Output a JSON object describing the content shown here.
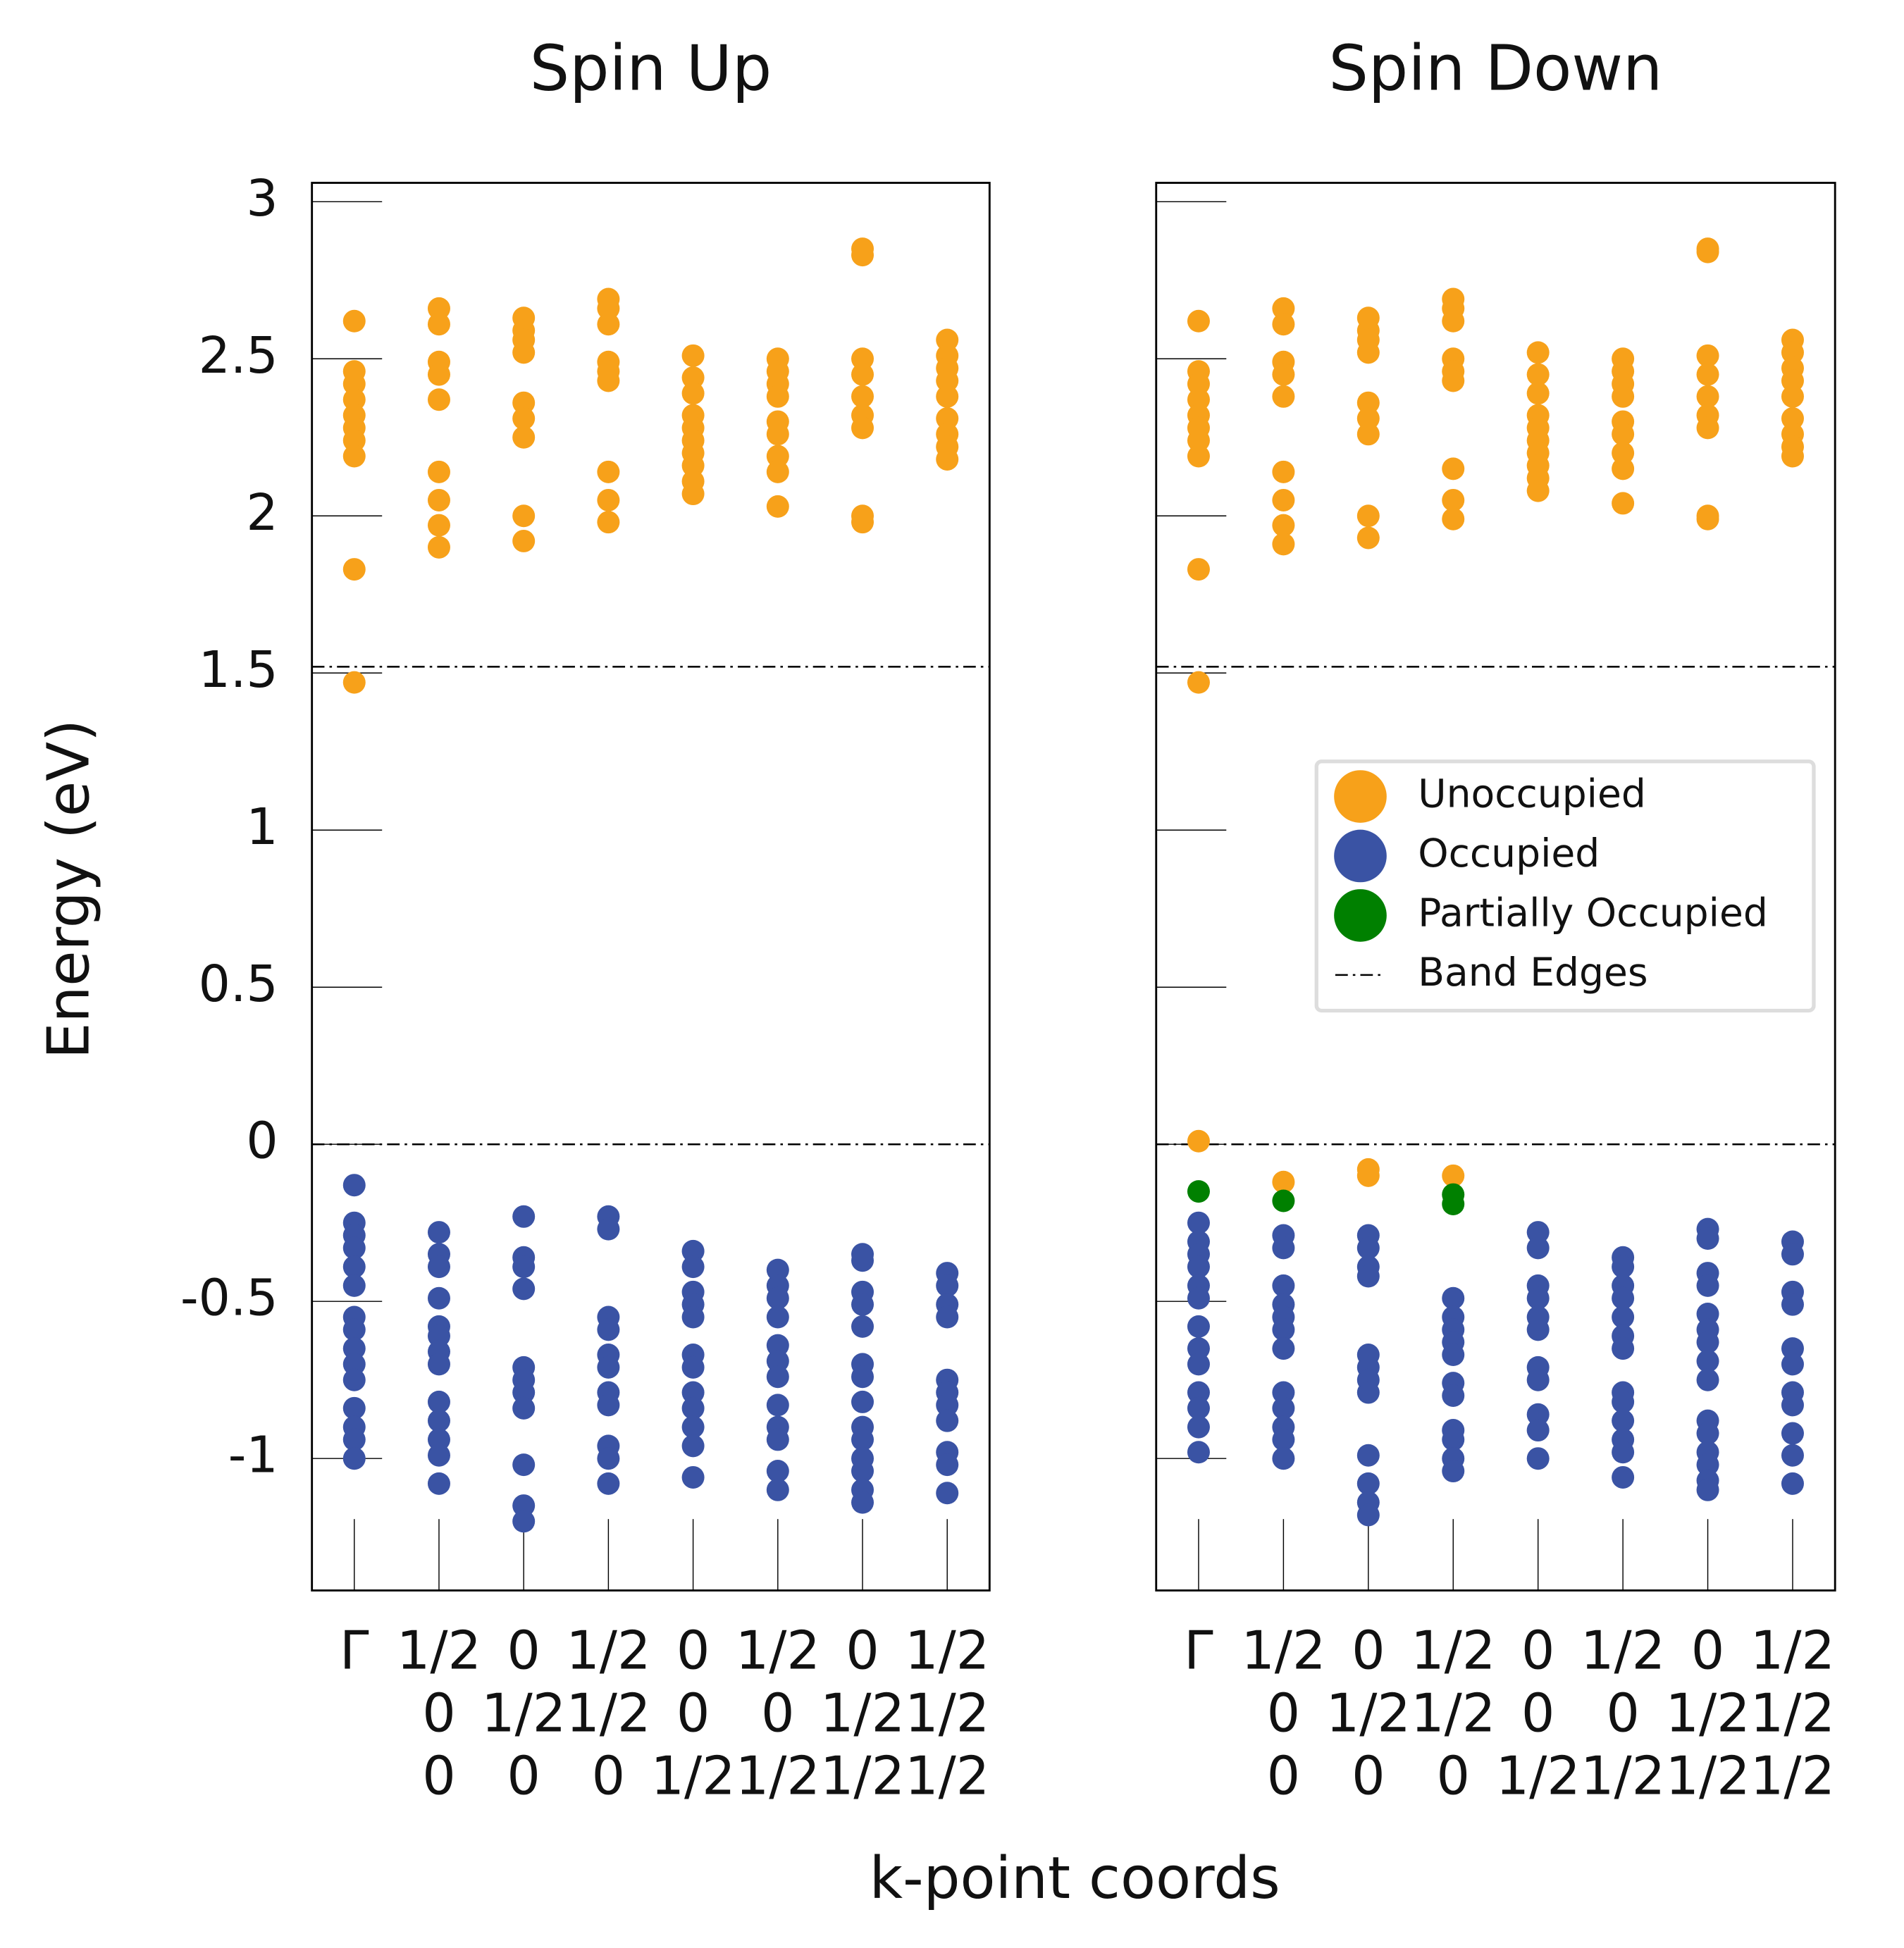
{
  "figure": {
    "xlabel": "k-point coords",
    "ylabel": "Energy (eV)"
  },
  "chart_data": [
    {
      "type": "scatter",
      "title": "Spin Up",
      "categories": [
        [
          "Γ"
        ],
        [
          "1/2",
          "0",
          "0"
        ],
        [
          "0",
          "1/2",
          "0"
        ],
        [
          "1/2",
          "1/2",
          "0"
        ],
        [
          "0",
          "0",
          "1/2"
        ],
        [
          "1/2",
          "0",
          "1/2"
        ],
        [
          "0",
          "1/2",
          "1/2"
        ],
        [
          "1/2",
          "1/2",
          "1/2"
        ]
      ],
      "ylim": [
        -1.42,
        3.06
      ],
      "yticks": [
        -1,
        -0.5,
        0,
        0.5,
        1,
        1.5,
        2,
        2.5,
        3
      ],
      "show_ytick_labels": true,
      "band_edges": {
        "name": "Band Edges",
        "values": [
          0,
          1.52
        ]
      },
      "series": [
        {
          "name": "Unoccupied",
          "color": "#f7a11a",
          "values": [
            [
              2.62,
              2.46,
              2.42,
              2.37,
              2.32,
              2.28,
              2.24,
              2.19,
              1.83,
              1.47
            ],
            [
              2.66,
              2.61,
              2.49,
              2.45,
              2.37,
              2.14,
              2.05,
              1.97,
              1.9
            ],
            [
              2.63,
              2.59,
              2.56,
              2.52,
              2.36,
              2.31,
              2.25,
              2.0,
              1.92
            ],
            [
              2.69,
              2.66,
              2.61,
              2.49,
              2.46,
              2.43,
              2.14,
              2.05,
              1.98
            ],
            [
              2.51,
              2.44,
              2.39,
              2.32,
              2.28,
              2.24,
              2.2,
              2.16,
              2.11,
              2.07
            ],
            [
              2.5,
              2.46,
              2.42,
              2.38,
              2.3,
              2.26,
              2.19,
              2.14,
              2.03
            ],
            [
              2.85,
              2.83,
              2.5,
              2.45,
              2.38,
              2.32,
              2.28,
              2.0,
              1.98
            ],
            [
              2.56,
              2.51,
              2.47,
              2.43,
              2.38,
              2.31,
              2.26,
              2.22,
              2.18
            ]
          ]
        },
        {
          "name": "Occupied",
          "color": "#3a53a4",
          "values": [
            [
              -0.13,
              -0.25,
              -0.29,
              -0.33,
              -0.39,
              -0.45,
              -0.55,
              -0.59,
              -0.65,
              -0.7,
              -0.75,
              -0.84,
              -0.9,
              -0.94,
              -1.0
            ],
            [
              -0.28,
              -0.35,
              -0.39,
              -0.49,
              -0.58,
              -0.61,
              -0.66,
              -0.7,
              -0.82,
              -0.88,
              -0.94,
              -0.99,
              -1.08
            ],
            [
              -0.23,
              -0.36,
              -0.39,
              -0.46,
              -0.71,
              -0.75,
              -0.79,
              -0.84,
              -1.02,
              -1.15,
              -1.2
            ],
            [
              -0.23,
              -0.27,
              -0.55,
              -0.59,
              -0.67,
              -0.71,
              -0.79,
              -0.83,
              -0.96,
              -1.0,
              -1.08
            ],
            [
              -0.34,
              -0.39,
              -0.47,
              -0.51,
              -0.55,
              -0.67,
              -0.71,
              -0.79,
              -0.84,
              -0.9,
              -0.96,
              -1.06
            ],
            [
              -0.4,
              -0.45,
              -0.49,
              -0.55,
              -0.64,
              -0.69,
              -0.74,
              -0.83,
              -0.9,
              -0.94,
              -1.04,
              -1.1
            ],
            [
              -0.35,
              -0.37,
              -0.47,
              -0.51,
              -0.58,
              -0.7,
              -0.74,
              -0.82,
              -0.9,
              -0.94,
              -1.0,
              -1.04,
              -1.1,
              -1.14
            ],
            [
              -0.41,
              -0.45,
              -0.51,
              -0.55,
              -0.75,
              -0.79,
              -0.83,
              -0.88,
              -0.98,
              -1.02,
              -1.11
            ]
          ]
        },
        {
          "name": "Partially Occupied",
          "color": "#008000",
          "values": [
            [],
            [],
            [],
            [],
            [],
            [],
            [],
            []
          ]
        }
      ]
    },
    {
      "type": "scatter",
      "title": "Spin Down",
      "categories": [
        [
          "Γ"
        ],
        [
          "1/2",
          "0",
          "0"
        ],
        [
          "0",
          "1/2",
          "0"
        ],
        [
          "1/2",
          "1/2",
          "0"
        ],
        [
          "0",
          "0",
          "1/2"
        ],
        [
          "1/2",
          "0",
          "1/2"
        ],
        [
          "0",
          "1/2",
          "1/2"
        ],
        [
          "1/2",
          "1/2",
          "1/2"
        ]
      ],
      "ylim": [
        -1.42,
        3.06
      ],
      "yticks": [
        -1,
        -0.5,
        0,
        0.5,
        1,
        1.5,
        2,
        2.5,
        3
      ],
      "show_ytick_labels": false,
      "band_edges": {
        "name": "Band Edges",
        "values": [
          0,
          1.52
        ]
      },
      "legend": "center right",
      "series": [
        {
          "name": "Unoccupied",
          "color": "#f7a11a",
          "values": [
            [
              2.62,
              2.46,
              2.42,
              2.37,
              2.32,
              2.28,
              2.24,
              2.19,
              1.83,
              1.47,
              0.01
            ],
            [
              2.66,
              2.61,
              2.49,
              2.45,
              2.38,
              2.14,
              2.05,
              1.97,
              1.91,
              -0.12
            ],
            [
              2.63,
              2.59,
              2.56,
              2.52,
              2.36,
              2.31,
              2.26,
              2.0,
              1.93,
              -0.08,
              -0.1
            ],
            [
              2.69,
              2.66,
              2.62,
              2.5,
              2.46,
              2.43,
              2.15,
              2.05,
              1.99,
              -0.1
            ],
            [
              2.52,
              2.45,
              2.39,
              2.32,
              2.28,
              2.24,
              2.2,
              2.16,
              2.12,
              2.08
            ],
            [
              2.5,
              2.46,
              2.42,
              2.38,
              2.3,
              2.26,
              2.2,
              2.15,
              2.04
            ],
            [
              2.85,
              2.84,
              2.51,
              2.45,
              2.38,
              2.32,
              2.28,
              2.0,
              1.99
            ],
            [
              2.56,
              2.52,
              2.47,
              2.43,
              2.38,
              2.31,
              2.26,
              2.22,
              2.19
            ]
          ]
        },
        {
          "name": "Occupied",
          "color": "#3a53a4",
          "values": [
            [
              -0.25,
              -0.31,
              -0.35,
              -0.39,
              -0.45,
              -0.49,
              -0.58,
              -0.65,
              -0.7,
              -0.79,
              -0.84,
              -0.9,
              -0.98
            ],
            [
              -0.29,
              -0.33,
              -0.45,
              -0.51,
              -0.55,
              -0.59,
              -0.65,
              -0.79,
              -0.84,
              -0.9,
              -0.94,
              -1.0
            ],
            [
              -0.29,
              -0.33,
              -0.39,
              -0.42,
              -0.67,
              -0.71,
              -0.75,
              -0.79,
              -0.99,
              -1.08,
              -1.14,
              -1.18
            ],
            [
              -0.49,
              -0.55,
              -0.59,
              -0.63,
              -0.67,
              -0.76,
              -0.8,
              -0.91,
              -0.94,
              -1.0,
              -1.04
            ],
            [
              -0.28,
              -0.33,
              -0.45,
              -0.49,
              -0.55,
              -0.59,
              -0.71,
              -0.75,
              -0.86,
              -0.91,
              -1.0
            ],
            [
              -0.36,
              -0.39,
              -0.45,
              -0.49,
              -0.55,
              -0.61,
              -0.65,
              -0.79,
              -0.82,
              -0.88,
              -0.94,
              -0.98,
              -1.06
            ],
            [
              -0.27,
              -0.3,
              -0.41,
              -0.45,
              -0.54,
              -0.59,
              -0.63,
              -0.69,
              -0.75,
              -0.88,
              -0.92,
              -0.98,
              -1.02,
              -1.07,
              -1.1
            ],
            [
              -0.31,
              -0.35,
              -0.47,
              -0.51,
              -0.65,
              -0.7,
              -0.79,
              -0.83,
              -0.92,
              -0.99,
              -1.08
            ]
          ]
        },
        {
          "name": "Partially Occupied",
          "color": "#008000",
          "values": [
            [
              -0.15
            ],
            [
              -0.18
            ],
            [],
            [
              -0.16,
              -0.19
            ],
            [],
            [],
            [],
            []
          ]
        }
      ]
    }
  ]
}
